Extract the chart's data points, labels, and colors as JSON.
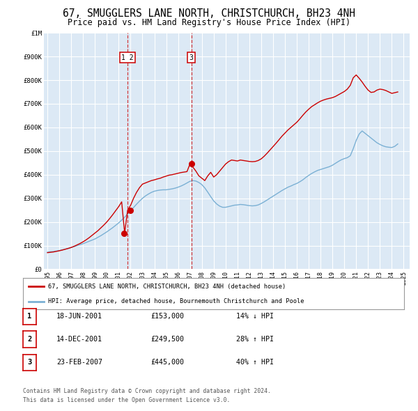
{
  "title": "67, SMUGGLERS LANE NORTH, CHRISTCHURCH, BH23 4NH",
  "subtitle": "Price paid vs. HM Land Registry's House Price Index (HPI)",
  "title_fontsize": 10.5,
  "subtitle_fontsize": 8.5,
  "bg_color": "#ffffff",
  "plot_bg_color": "#dce9f5",
  "grid_color": "#ffffff",
  "red_color": "#cc0000",
  "blue_color": "#7ab0d4",
  "dashed_color": "#cc0000",
  "ylim": [
    0,
    1000000
  ],
  "yticks": [
    0,
    100000,
    200000,
    300000,
    400000,
    500000,
    600000,
    700000,
    800000,
    900000,
    1000000
  ],
  "ytick_labels": [
    "£0",
    "£100K",
    "£200K",
    "£300K",
    "£400K",
    "£500K",
    "£600K",
    "£700K",
    "£800K",
    "£900K",
    "£1M"
  ],
  "xlim_start": 1994.7,
  "xlim_end": 2025.5,
  "xticks": [
    1995,
    1996,
    1997,
    1998,
    1999,
    2000,
    2001,
    2002,
    2003,
    2004,
    2005,
    2006,
    2007,
    2008,
    2009,
    2010,
    2011,
    2012,
    2013,
    2014,
    2015,
    2016,
    2017,
    2018,
    2019,
    2020,
    2021,
    2022,
    2023,
    2024,
    2025
  ],
  "transaction_dates": [
    2001.46,
    2001.95,
    2007.14
  ],
  "transaction_values": [
    153000,
    249500,
    445000
  ],
  "vline1_x": 2001.75,
  "vline2_x": 2007.12,
  "legend_red_label": "67, SMUGGLERS LANE NORTH, CHRISTCHURCH, BH23 4NH (detached house)",
  "legend_blue_label": "HPI: Average price, detached house, Bournemouth Christchurch and Poole",
  "table_entries": [
    {
      "num": "1",
      "date": "18-JUN-2001",
      "price": "£153,000",
      "change": "14% ↓ HPI"
    },
    {
      "num": "2",
      "date": "14-DEC-2001",
      "price": "£249,500",
      "change": "28% ↑ HPI"
    },
    {
      "num": "3",
      "date": "23-FEB-2007",
      "price": "£445,000",
      "change": "40% ↑ HPI"
    }
  ],
  "footnote1": "Contains HM Land Registry data © Crown copyright and database right 2024.",
  "footnote2": "This data is licensed under the Open Government Licence v3.0.",
  "hpi_y": [
    72000,
    74000,
    75000,
    77000,
    79000,
    82000,
    85000,
    88000,
    92000,
    96000,
    100000,
    104000,
    108000,
    113000,
    118000,
    123000,
    128000,
    135000,
    142000,
    150000,
    158000,
    167000,
    176000,
    186000,
    196000,
    208000,
    220000,
    233000,
    247000,
    261000,
    275000,
    288000,
    300000,
    310000,
    318000,
    325000,
    330000,
    333000,
    335000,
    336000,
    336000,
    338000,
    340000,
    343000,
    347000,
    352000,
    358000,
    365000,
    372000,
    375000,
    373000,
    367000,
    358000,
    344000,
    326000,
    307000,
    289000,
    276000,
    267000,
    262000,
    262000,
    265000,
    268000,
    271000,
    272000,
    274000,
    273000,
    271000,
    269000,
    268000,
    269000,
    272000,
    278000,
    285000,
    293000,
    301000,
    309000,
    317000,
    325000,
    333000,
    340000,
    347000,
    352000,
    358000,
    363000,
    370000,
    378000,
    388000,
    397000,
    405000,
    412000,
    418000,
    422000,
    426000,
    430000,
    434000,
    440000,
    448000,
    456000,
    463000,
    468000,
    472000,
    480000,
    510000,
    545000,
    572000,
    585000,
    575000,
    565000,
    555000,
    545000,
    535000,
    528000,
    522000,
    518000,
    516000,
    515000,
    520000,
    530000
  ],
  "red_y": [
    70000,
    71500,
    73000,
    75500,
    78000,
    81000,
    84500,
    88000,
    92000,
    97000,
    103000,
    109000,
    116000,
    124000,
    133000,
    143000,
    153000,
    163000,
    175000,
    187000,
    200000,
    215000,
    231000,
    248000,
    265000,
    285000,
    153000,
    249500,
    270000,
    300000,
    325000,
    345000,
    360000,
    365000,
    370000,
    375000,
    378000,
    382000,
    385000,
    390000,
    394000,
    398000,
    400000,
    403000,
    406000,
    409000,
    411000,
    413000,
    445000,
    432000,
    415000,
    395000,
    385000,
    375000,
    395000,
    410000,
    390000,
    400000,
    415000,
    430000,
    445000,
    455000,
    462000,
    460000,
    458000,
    462000,
    460000,
    458000,
    456000,
    455000,
    456000,
    460000,
    467000,
    478000,
    491000,
    505000,
    519000,
    533000,
    548000,
    563000,
    576000,
    589000,
    600000,
    611000,
    622000,
    636000,
    651000,
    665000,
    677000,
    688000,
    696000,
    704000,
    711000,
    716000,
    720000,
    723000,
    726000,
    731000,
    738000,
    745000,
    752000,
    762000,
    778000,
    810000,
    822000,
    808000,
    792000,
    774000,
    758000,
    748000,
    750000,
    758000,
    762000,
    760000,
    756000,
    750000,
    744000,
    747000,
    750000
  ]
}
